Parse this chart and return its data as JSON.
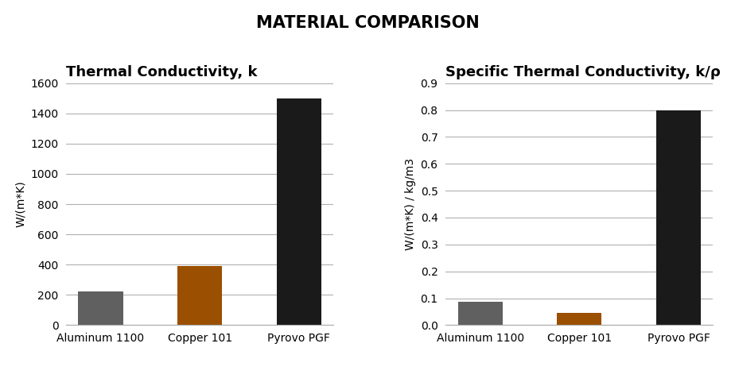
{
  "title": "MATERIAL COMPARISON",
  "title_fontsize": 15,
  "title_fontweight": "bold",
  "categories": [
    "Aluminum 1100",
    "Copper 101",
    "Pyrovo PGF"
  ],
  "chart1_title": "Thermal Conductivity, k",
  "chart1_ylabel": "W/(m*K)",
  "chart1_values": [
    222,
    388,
    1500
  ],
  "chart1_ylim": [
    0,
    1600
  ],
  "chart1_yticks": [
    0,
    200,
    400,
    600,
    800,
    1000,
    1200,
    1400,
    1600
  ],
  "chart2_title": "Specific Thermal Conductivity, k/ρ",
  "chart2_ylabel": "W/(m*K) / kg/m3",
  "chart2_values": [
    0.088,
    0.046,
    0.8
  ],
  "chart2_ylim": [
    0,
    0.9
  ],
  "chart2_yticks": [
    0,
    0.1,
    0.2,
    0.3,
    0.4,
    0.5,
    0.6,
    0.7,
    0.8,
    0.9
  ],
  "bar_colors": [
    "#606060",
    "#9B4F00",
    "#1a1a1a"
  ],
  "bar_width": 0.45,
  "background_color": "#ffffff",
  "grid_color": "#b0b0b0",
  "label_fontsize": 10,
  "tick_fontsize": 10,
  "axis_title_fontsize": 13,
  "cat_fontsize": 10
}
